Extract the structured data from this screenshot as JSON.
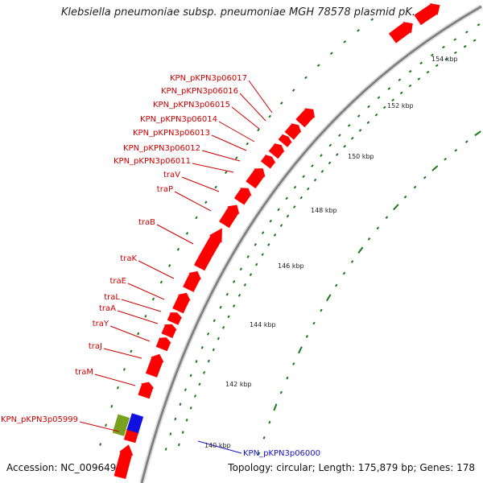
{
  "title": "Klebsiella pneumoniae subsp. pneumoniae MGH 78578 plasmid pK...",
  "accession": "Accession: NC_009649",
  "summary": "Topology: circular; Length: 175,879 bp; Genes: 178",
  "colors": {
    "forward_gene": "#ff0000",
    "reverse_gene": "#1010e0",
    "other_feature": "#7aa020",
    "backbone": "#9a9a9a",
    "tick": "#1a7a1a",
    "forward_label": "#cc0000",
    "reverse_label": "#1010cc"
  },
  "ruler_labels": [
    {
      "text": "154 kbp"
    },
    {
      "text": "152 kbp"
    },
    {
      "text": "150 kbp"
    },
    {
      "text": "148 kbp"
    },
    {
      "text": "146 kbp"
    },
    {
      "text": "144 kbp"
    },
    {
      "text": "142 kbp"
    },
    {
      "text": "140 kbp"
    }
  ],
  "gene_labels": [
    {
      "text": "KPN_pKPN3p06017",
      "strand": "forward"
    },
    {
      "text": "KPN_pKPN3p06016",
      "strand": "forward"
    },
    {
      "text": "KPN_pKPN3p06015",
      "strand": "forward"
    },
    {
      "text": "KPN_pKPN3p06014",
      "strand": "forward"
    },
    {
      "text": "KPN_pKPN3p06013",
      "strand": "forward"
    },
    {
      "text": "KPN_pKPN3p06012",
      "strand": "forward"
    },
    {
      "text": "KPN_pKPN3p06011",
      "strand": "forward"
    },
    {
      "text": "traV",
      "strand": "forward"
    },
    {
      "text": "traP",
      "strand": "forward"
    },
    {
      "text": "traB",
      "strand": "forward"
    },
    {
      "text": "traK",
      "strand": "forward"
    },
    {
      "text": "traE",
      "strand": "forward"
    },
    {
      "text": "traL",
      "strand": "forward"
    },
    {
      "text": "traA",
      "strand": "forward"
    },
    {
      "text": "traY",
      "strand": "forward"
    },
    {
      "text": "traJ",
      "strand": "forward"
    },
    {
      "text": "traM",
      "strand": "forward"
    },
    {
      "text": "KPN_pKPN3p05999",
      "strand": "forward"
    },
    {
      "text": "KPN_pKPN3p06000",
      "strand": "reverse"
    }
  ]
}
